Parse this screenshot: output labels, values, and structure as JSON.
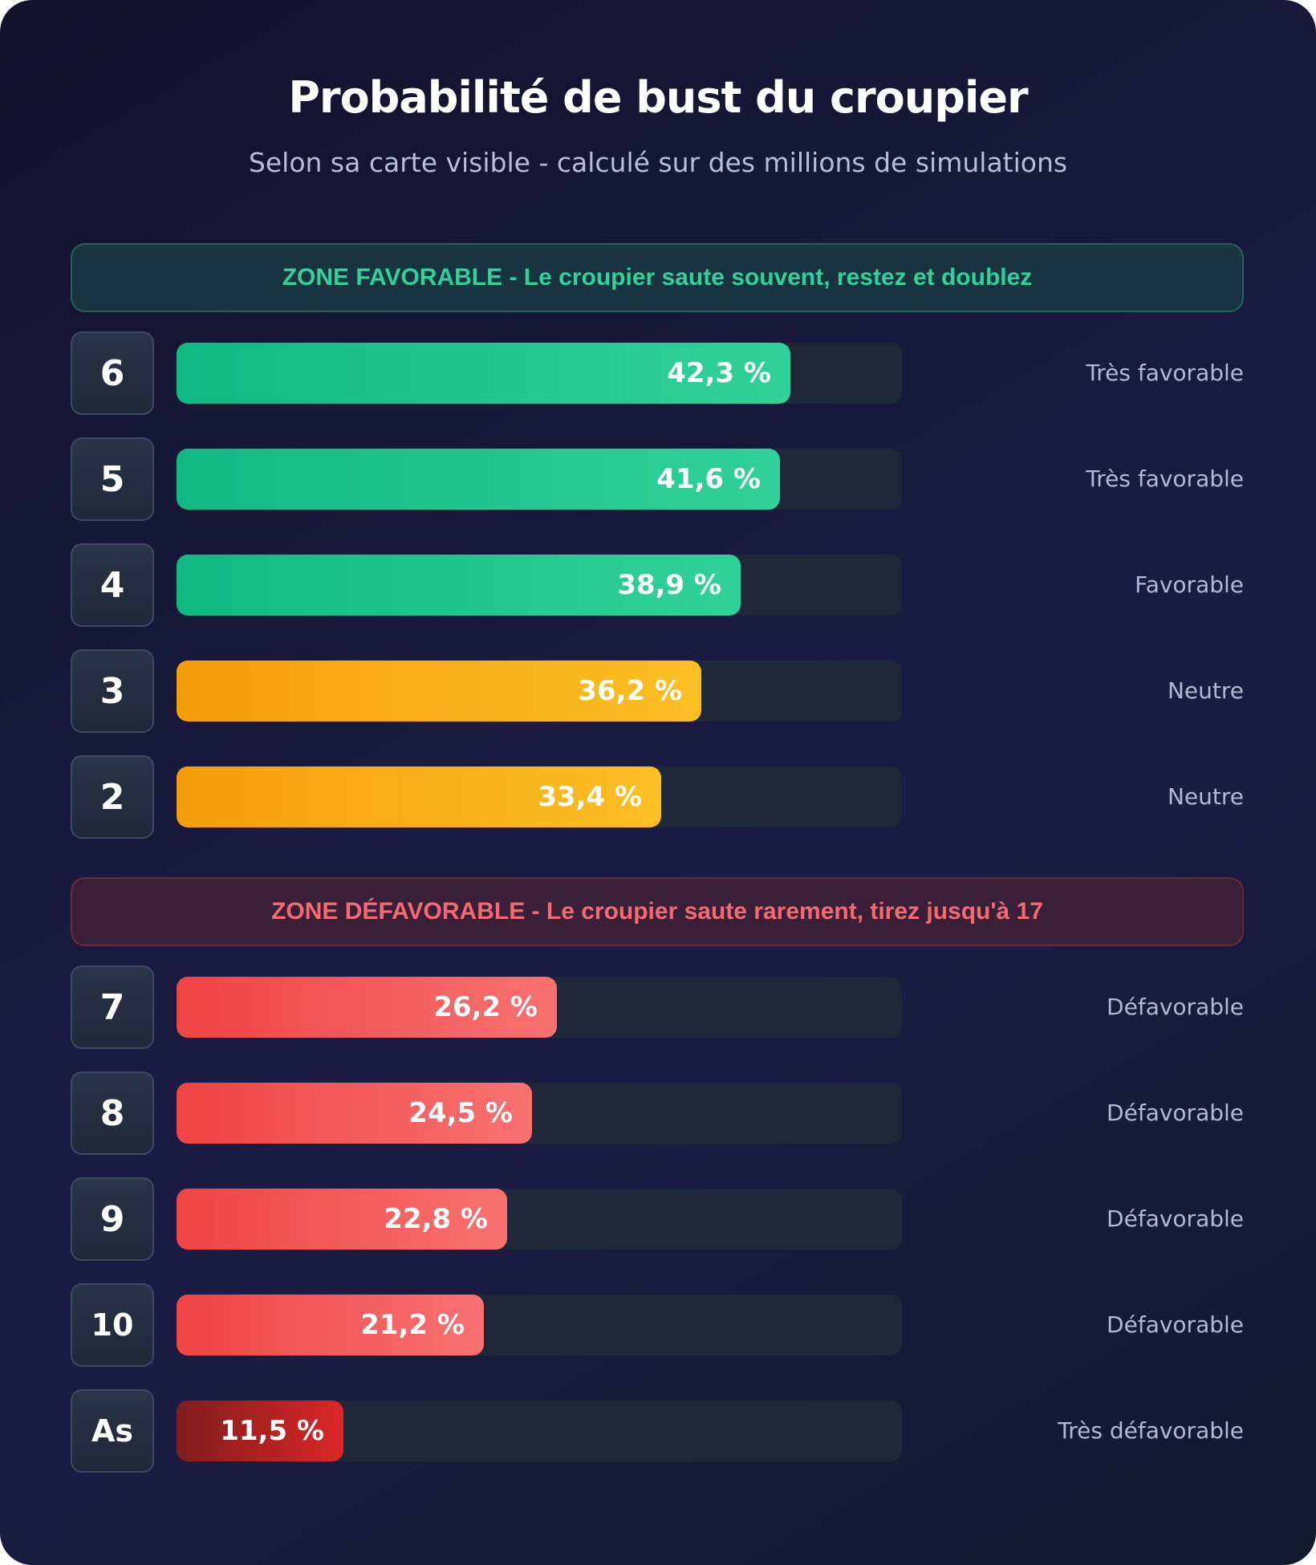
{
  "title": "Probabilité de bust du croupier",
  "subtitle": "Selon sa carte visible - calculé sur des millions de simulations",
  "zones": {
    "favorable": "ZONE FAVORABLE - Le croupier saute souvent, restez et doublez",
    "unfavorable": "ZONE DÉFAVORABLE - Le croupier saute rarement, tirez jusqu'à 17"
  },
  "colors": {
    "favorable": "#10b981",
    "neutral": "#f59e0b",
    "unfavorable": "#ef4444",
    "very_unfavorable": "#b91c1c"
  },
  "chart_data": {
    "type": "bar",
    "orientation": "horizontal",
    "title": "Probabilité de bust du croupier",
    "subtitle": "Selon sa carte visible - calculé sur des millions de simulations",
    "xlim": [
      0,
      50
    ],
    "unit": "%",
    "categories": [
      "6",
      "5",
      "4",
      "3",
      "2",
      "7",
      "8",
      "9",
      "10",
      "As"
    ],
    "values": [
      42.3,
      41.6,
      38.9,
      36.2,
      33.4,
      26.2,
      24.5,
      22.8,
      21.2,
      11.5
    ],
    "value_labels": [
      "42,3 %",
      "41,6 %",
      "38,9 %",
      "36,2 %",
      "33,4 %",
      "26,2 %",
      "24,5 %",
      "22,8 %",
      "21,2 %",
      "11,5 %"
    ],
    "ratings": [
      "Très favorable",
      "Très favorable",
      "Favorable",
      "Neutre",
      "Neutre",
      "Défavorable",
      "Défavorable",
      "Défavorable",
      "Défavorable",
      "Très défavorable"
    ],
    "color_groups": [
      "green",
      "green",
      "green",
      "orange",
      "orange",
      "red",
      "red",
      "red",
      "red",
      "darkred"
    ]
  }
}
